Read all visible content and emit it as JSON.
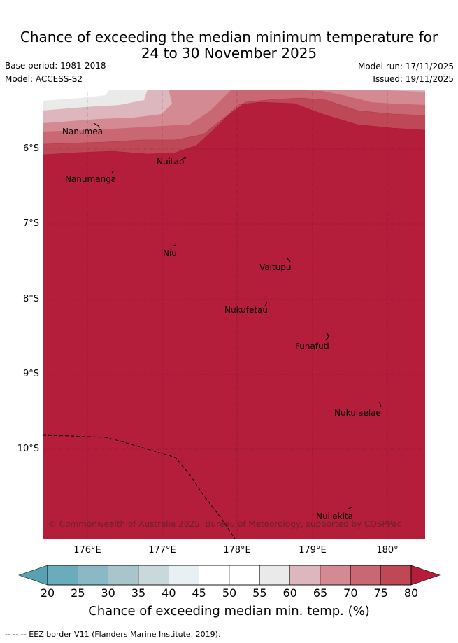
{
  "title": {
    "line1": "Chance of exceeding the median minimum temperature for",
    "line2": "24 to 30 November 2025"
  },
  "meta": {
    "base_period": "Base period: 1981-2018",
    "model": "Model: ACCESS-S2",
    "model_run": "Model run: 17/11/2025",
    "issued": "Issued: 19/11/2025"
  },
  "map": {
    "lat_labels": [
      "6°S",
      "7°S",
      "8°S",
      "9°S",
      "10°S"
    ],
    "lon_labels": [
      "176°E",
      "177°E",
      "178°E",
      "179°E",
      "180°"
    ],
    "places": [
      "Nanumea",
      "Nuitao",
      "Nanumanga",
      "Niu",
      "Vaitupu",
      "Nukufetau",
      "Funafuti",
      "Nukulaelae",
      "Nuilakita"
    ],
    "copyright": "© Commonwealth of Australia 2025, Bureau of Meteorology, supported by COSPPac",
    "dominant_color": "#b41e3a"
  },
  "colorbar": {
    "ticks": [
      "20",
      "25",
      "30",
      "35",
      "40",
      "45",
      "50",
      "55",
      "60",
      "65",
      "70",
      "75",
      "80"
    ],
    "colors": [
      "#6aacbb",
      "#8ab8c4",
      "#a7c5cb",
      "#c9d8da",
      "#e8f0f3",
      "#ffffff",
      "#ffffff",
      "#eaeaea",
      "#deb6bd",
      "#d48a93",
      "#c96772",
      "#bf4856"
    ],
    "below_color": "#56a2b3",
    "above_color": "#b41e3a",
    "label": "Chance of exceeding median min. temp. (%)"
  },
  "footer": "--  --  -- EEZ border V11 (Flanders Marine Institute, 2019)."
}
